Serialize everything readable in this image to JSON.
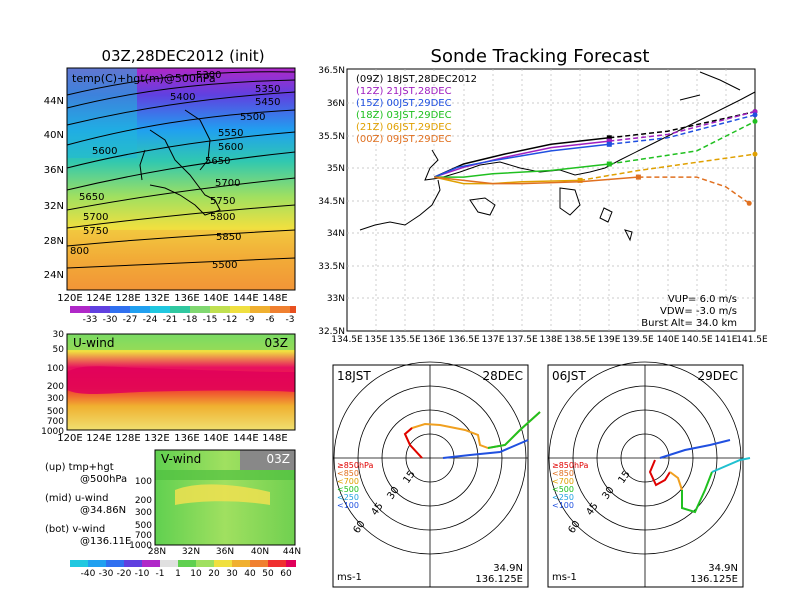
{
  "top_left": {
    "title": "03Z,28DEC2012 (init)",
    "label": "temp(C)+hgt(m)@500hPa",
    "y_ticks": [
      "44N",
      "40N",
      "36N",
      "32N",
      "28N",
      "24N"
    ],
    "x_ticks": [
      "120E",
      "124E",
      "128E",
      "132E",
      "136E",
      "140E",
      "144E",
      "148E"
    ],
    "contour_labels": [
      "5300",
      "5350",
      "5400",
      "5450",
      "5500",
      "5550",
      "5600",
      "5650",
      "5700",
      "5750",
      "5800",
      "5850",
      "5500",
      "5600",
      "5650",
      "5700",
      "5750",
      "800"
    ],
    "colorbar": [
      "-33",
      "-30",
      "-27",
      "-24",
      "-21",
      "-18",
      "-15",
      "-12",
      "-9",
      "-6",
      "-3"
    ]
  },
  "u_wind": {
    "label": "U-wind",
    "time": "03Z",
    "y_ticks": [
      "30",
      "50",
      "100",
      "200",
      "300",
      "500",
      "700",
      "1000"
    ],
    "x_ticks": [
      "120E",
      "124E",
      "128E",
      "132E",
      "136E",
      "140E",
      "144E",
      "148E"
    ]
  },
  "v_wind": {
    "label": "V-wind",
    "time": "03Z",
    "y_ticks": [
      "100",
      "200",
      "300",
      "500",
      "700",
      "1000"
    ],
    "x_ticks": [
      "28N",
      "32N",
      "36N",
      "40N",
      "44N"
    ]
  },
  "notes": [
    "(up) tmp+hgt",
    "@500hPa",
    "(mid) u-wind",
    "@34.86N",
    "(bot) v-wind",
    "@136.11E"
  ],
  "wind_colorbar": [
    "-40",
    "-30",
    "-20",
    "-10",
    "-1",
    "1",
    "10",
    "20",
    "30",
    "40",
    "50",
    "60"
  ],
  "forecast": {
    "title": "Sonde Tracking Forecast",
    "legend": [
      {
        "text": "(09Z) 18JST,28DEC2012",
        "color": "#000000"
      },
      {
        "text": "(12Z) 21JST,28DEC",
        "color": "#a020c0"
      },
      {
        "text": "(15Z) 00JST,29DEC",
        "color": "#2050e0"
      },
      {
        "text": "(18Z) 03JST,29DEC",
        "color": "#20c020"
      },
      {
        "text": "(21Z) 06JST,29DEC",
        "color": "#e0a000"
      },
      {
        "text": "(00Z) 09JST,29DEC",
        "color": "#e07020"
      }
    ],
    "params": [
      "VUP= 6.0 m/s",
      "VDW= -3.0 m/s",
      "Burst Alt= 34.0 km"
    ],
    "y_ticks": [
      "36.5N",
      "36N",
      "35.5N",
      "35N",
      "34.5N",
      "34N",
      "33.5N",
      "33N",
      "32.5N"
    ],
    "x_ticks": [
      "134.5E",
      "135E",
      "135.5E",
      "136E",
      "136.5E",
      "137E",
      "137.5E",
      "138E",
      "138.5E",
      "139E",
      "139.5E",
      "140E",
      "140.5E",
      "141E",
      "141.5E"
    ]
  },
  "hodo_left": {
    "time": "18JST",
    "date": "28DEC",
    "ring_labels": [
      "15",
      "30",
      "45",
      "60"
    ],
    "levels": [
      "≥850hPa",
      "<850",
      "<700",
      "<500",
      "<250",
      "<100"
    ],
    "unit": "ms-1",
    "lat": "34.9N",
    "lon": "136.125E"
  },
  "hodo_right": {
    "time": "06JST",
    "date": "29DEC",
    "ring_labels": [
      "15",
      "30",
      "45",
      "60"
    ],
    "levels": [
      "≥850hPa",
      "<850",
      "<700",
      "<500",
      "<250",
      "<100"
    ],
    "unit": "ms-1",
    "lat": "34.9N",
    "lon": "136.125E"
  },
  "colors": {
    "level_colors": [
      "#e00000",
      "#e07020",
      "#e0a000",
      "#20c020",
      "#20a0e0",
      "#2050e0"
    ]
  },
  "chart_data": [
    {
      "type": "heatmap",
      "title": "03Z,28DEC2012 (init)",
      "xlabel": "",
      "ylabel": "",
      "xlim": [
        120,
        150
      ],
      "ylim": [
        22,
        48
      ]
    },
    {
      "type": "heatmap",
      "title": "U-wind",
      "ylim": [
        1000,
        30
      ]
    },
    {
      "type": "heatmap",
      "title": "V-wind",
      "xlim": [
        28,
        44
      ],
      "ylim": [
        1000,
        100
      ]
    },
    {
      "type": "line",
      "title": "Sonde Tracking Forecast",
      "xlim": [
        134.5,
        141.5
      ],
      "ylim": [
        32.5,
        36.5
      ],
      "series": [
        {
          "name": "(09Z) 18JST,28DEC2012",
          "x": [
            136.0,
            136.5,
            137.2,
            138.0,
            139.0,
            140.0,
            141.5
          ],
          "y": [
            34.85,
            35.05,
            35.2,
            35.35,
            35.45,
            35.55,
            35.85
          ]
        },
        {
          "name": "(12Z) 21JST,28DEC",
          "x": [
            136.0,
            136.5,
            137.2,
            138.0,
            139.0,
            140.0,
            141.5
          ],
          "y": [
            34.85,
            35.0,
            35.15,
            35.3,
            35.4,
            35.5,
            35.85
          ]
        },
        {
          "name": "(15Z) 00JST,29DEC",
          "x": [
            136.0,
            136.4,
            137.0,
            138.0,
            139.0,
            140.0,
            141.5
          ],
          "y": [
            34.85,
            35.0,
            35.1,
            35.25,
            35.35,
            35.45,
            35.8
          ]
        },
        {
          "name": "(18Z) 03JST,29DEC",
          "x": [
            136.0,
            136.5,
            137.0,
            138.0,
            139.0,
            140.5,
            141.5
          ],
          "y": [
            34.85,
            34.85,
            34.9,
            34.95,
            35.05,
            35.25,
            35.7
          ]
        },
        {
          "name": "(21Z) 06JST,29DEC",
          "x": [
            136.0,
            136.5,
            137.0,
            137.5,
            138.5,
            139.5,
            141.5
          ],
          "y": [
            34.85,
            34.75,
            34.75,
            34.78,
            34.8,
            34.95,
            35.2
          ]
        },
        {
          "name": "(00Z) 09JST,29DEC",
          "x": [
            136.0,
            136.5,
            137.0,
            137.5,
            138.5,
            139.5,
            140.5,
            141.0,
            141.4
          ],
          "y": [
            34.85,
            34.8,
            34.75,
            34.75,
            34.78,
            34.85,
            34.85,
            34.7,
            34.45
          ]
        }
      ]
    }
  ]
}
